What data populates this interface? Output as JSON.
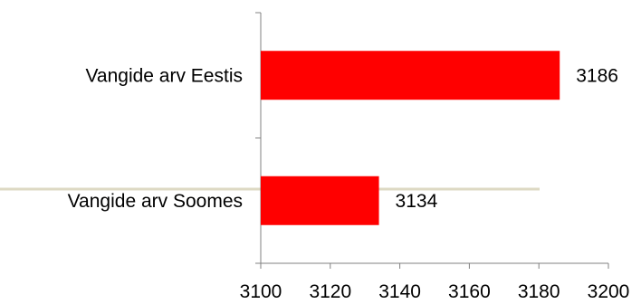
{
  "chart_data": {
    "type": "bar",
    "orientation": "horizontal",
    "categories": [
      "Vangide arv Eestis",
      "Vangide arv Soomes"
    ],
    "values": [
      3186,
      3134
    ],
    "data_labels": [
      "3186",
      "3134"
    ],
    "xlim": [
      3100,
      3200
    ],
    "x_ticks": [
      "3100",
      "3120",
      "3140",
      "3160",
      "3180",
      "3200"
    ],
    "title": "",
    "xlabel": "",
    "ylabel": "",
    "grid": false,
    "legend": "none",
    "bar_color": "#ff0000",
    "axis_color": "#808080",
    "decorative_line_color": "#ddd9c3"
  }
}
